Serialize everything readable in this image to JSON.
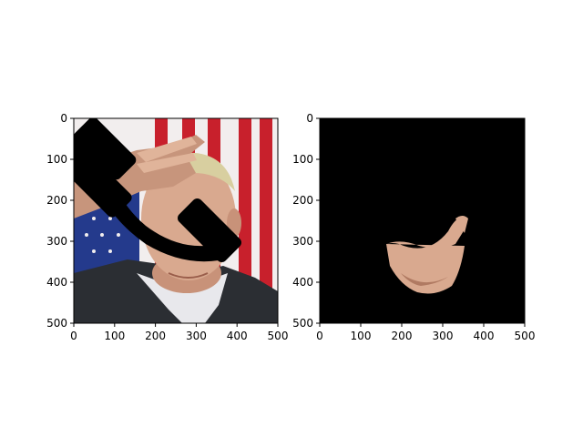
{
  "figure": {
    "background": "#ffffff",
    "panels": 2
  },
  "chart_data": [
    {
      "type": "image",
      "subject": "photo of a man saluting in front of an american flag, with a black telephone-handset shaped occlusion mask over the upper face",
      "title": "",
      "xlabel": "",
      "ylabel": "",
      "xlim": [
        0,
        500
      ],
      "ylim": [
        500,
        0
      ],
      "x_ticks": [
        0,
        100,
        200,
        300,
        400,
        500
      ],
      "y_ticks": [
        0,
        100,
        200,
        300,
        400,
        500
      ],
      "grid": false
    },
    {
      "type": "image",
      "subject": "segmentation result: black background with only the visible lower-face skin region shown",
      "title": "",
      "xlabel": "",
      "ylabel": "",
      "xlim": [
        0,
        500
      ],
      "ylim": [
        500,
        0
      ],
      "x_ticks": [
        0,
        100,
        200,
        300,
        400,
        500
      ],
      "y_ticks": [
        0,
        100,
        200,
        300,
        400,
        500
      ],
      "grid": false
    }
  ],
  "colors": {
    "flag_red": "#c8202c",
    "flag_white": "#f2eeee",
    "flag_blue": "#243a8c",
    "skin": "#d9a98f",
    "skin_shadow": "#b07a62",
    "hair": "#d8cfa0",
    "jacket": "#2b2e33",
    "shirt": "#e8e8ec",
    "mask": "#000000"
  }
}
